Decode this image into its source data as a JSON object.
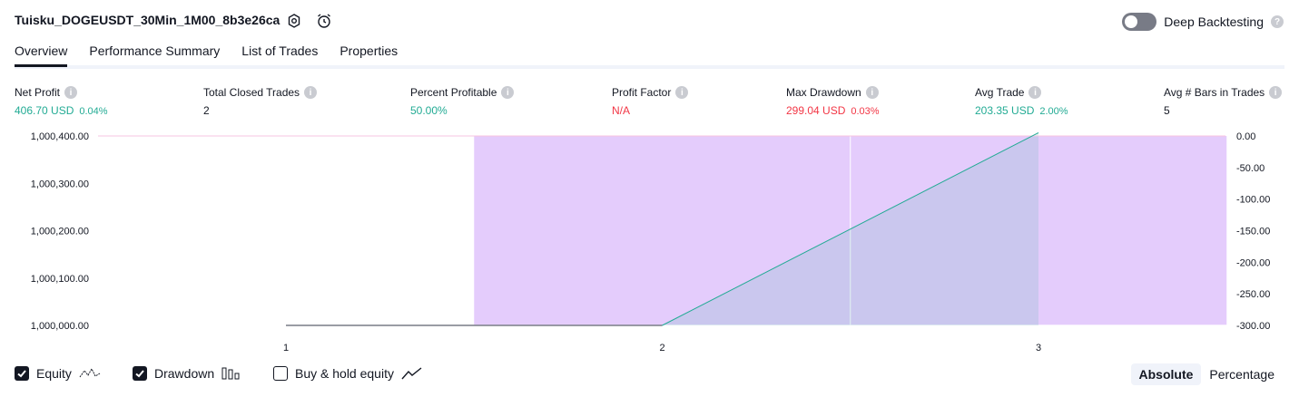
{
  "header": {
    "title": "Tuisku_DOGEUSDT_30Min_1M00_8b3e26ca",
    "deep_backtesting_label": "Deep Backtesting",
    "deep_backtesting_enabled": false
  },
  "tabs": [
    {
      "label": "Overview",
      "active": true
    },
    {
      "label": "Performance Summary",
      "active": false
    },
    {
      "label": "List of Trades",
      "active": false
    },
    {
      "label": "Properties",
      "active": false
    }
  ],
  "metrics": {
    "net_profit": {
      "label": "Net Profit",
      "value": "406.70 USD",
      "pct": "0.04%"
    },
    "total_closed_trades": {
      "label": "Total Closed Trades",
      "value": "2"
    },
    "percent_profitable": {
      "label": "Percent Profitable",
      "value": "50.00%"
    },
    "profit_factor": {
      "label": "Profit Factor",
      "value": "N/A"
    },
    "max_drawdown": {
      "label": "Max Drawdown",
      "value": "299.04 USD",
      "pct": "0.03%"
    },
    "avg_trade": {
      "label": "Avg Trade",
      "value": "203.35 USD",
      "pct": "2.00%"
    },
    "avg_bars": {
      "label": "Avg # Bars in Trades",
      "value": "5"
    }
  },
  "chart_data": {
    "type": "area",
    "x_ticks": [
      "1",
      "2",
      "3"
    ],
    "left_axis": {
      "ticks": [
        "1,000,400.00",
        "1,000,300.00",
        "1,000,200.00",
        "1,000,100.00",
        "1,000,000.00"
      ],
      "min": 1000000,
      "max": 1000400
    },
    "right_axis": {
      "ticks": [
        "0.00",
        "-50.00",
        "-100.00",
        "-150.00",
        "-200.00",
        "-250.00",
        "-300.00"
      ],
      "min": -300,
      "max": 0
    },
    "equity": {
      "name": "Equity",
      "x": [
        1,
        2,
        3
      ],
      "y": [
        1000000,
        1000000,
        1000406.7
      ],
      "color": "#22ab94"
    },
    "buy_hold_baseline": {
      "color": "#787b86"
    },
    "drawdown": [
      {
        "x_start": 1.5,
        "x_end": 2.5,
        "drawdown": -299.04
      },
      {
        "x_start": 2.5,
        "x_end": 3.5,
        "drawdown": -299.04
      }
    ],
    "drawdown_color": "#e1c6fc",
    "reference_line": 1000400,
    "reference_line_color": "#f7c5e0"
  },
  "legend": {
    "equity": {
      "label": "Equity",
      "checked": true
    },
    "drawdown": {
      "label": "Drawdown",
      "checked": true
    },
    "buy_hold": {
      "label": "Buy & hold equity",
      "checked": false
    }
  },
  "mode": {
    "absolute": "Absolute",
    "percentage": "Percentage",
    "selected": "Absolute"
  }
}
